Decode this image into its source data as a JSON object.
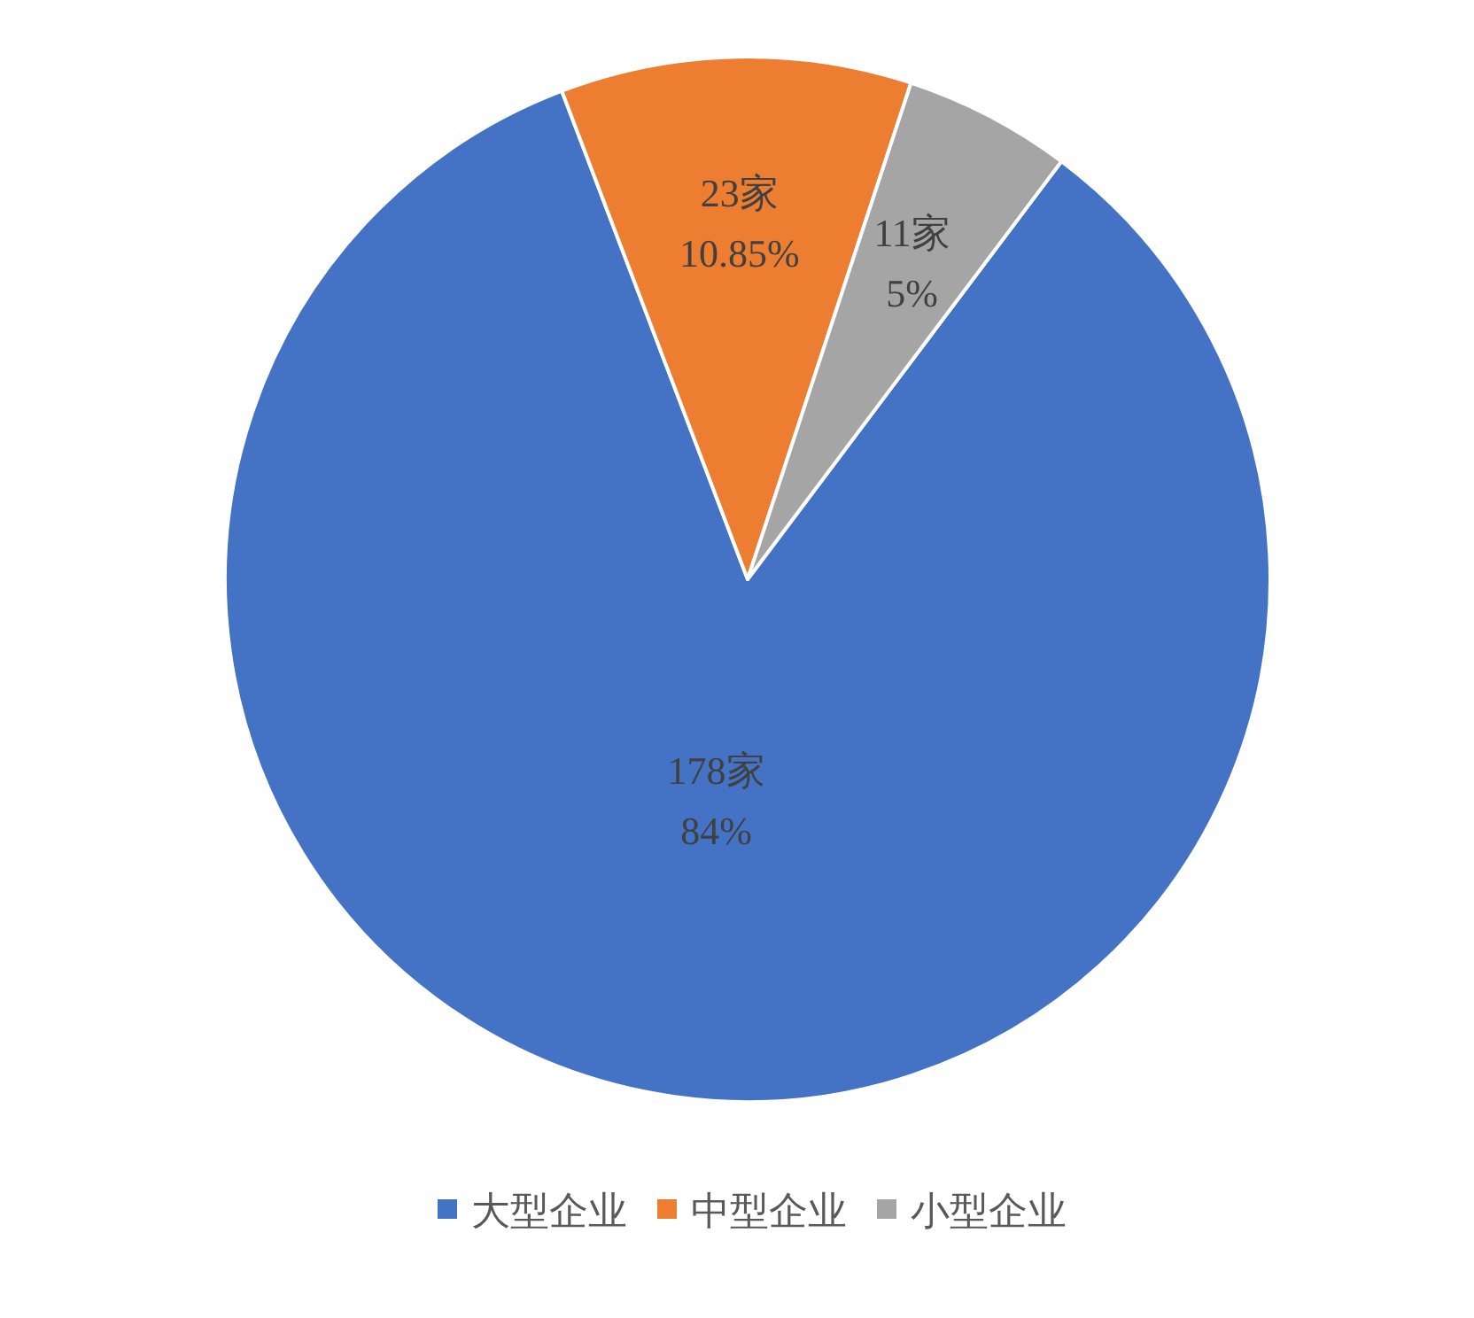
{
  "chart_data": {
    "type": "pie",
    "categories": [
      "大型企业",
      "中型企业",
      "小型企业"
    ],
    "values": [
      178,
      23,
      11
    ],
    "colors": [
      "#4472c4",
      "#ed7d31",
      "#a5a5a5"
    ],
    "value_labels": [
      "178家 84%",
      "23家 10.85%",
      "11家 5%"
    ],
    "legend": "bottom"
  }
}
